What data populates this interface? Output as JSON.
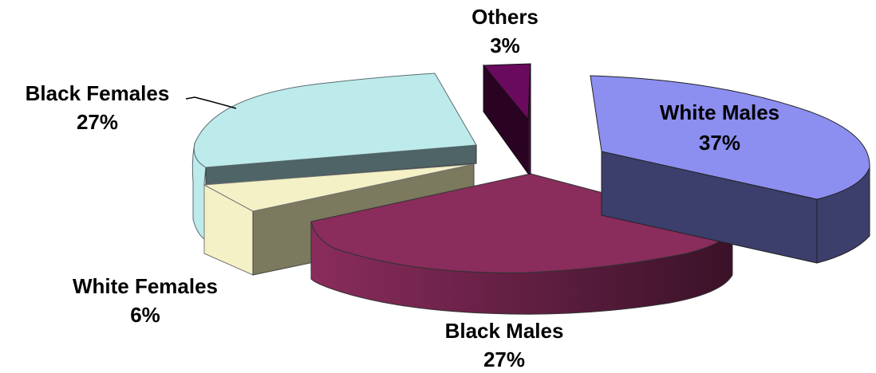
{
  "chart_data": {
    "type": "pie",
    "style": "3d-exploded",
    "title": "",
    "legend": "none",
    "slices": [
      {
        "name": "White Males",
        "percent_label": "37%",
        "value": 37,
        "color": "#8c8ef0",
        "side_color": "#3c3f6b"
      },
      {
        "name": "Black Males",
        "percent_label": "27%",
        "value": 27,
        "color": "#8a2c5c",
        "side_color": "#5a1d3c"
      },
      {
        "name": "White Females",
        "percent_label": "6%",
        "value": 6,
        "color": "#f4f1c6",
        "side_color": "#7b795e"
      },
      {
        "name": "Black Females",
        "percent_label": "27%",
        "value": 27,
        "color": "#bdeaea",
        "side_color": "#4f6466"
      },
      {
        "name": "Others",
        "percent_label": "3%",
        "value": 3,
        "color": "#6a0a5e",
        "side_color": "#2a0322"
      }
    ]
  }
}
